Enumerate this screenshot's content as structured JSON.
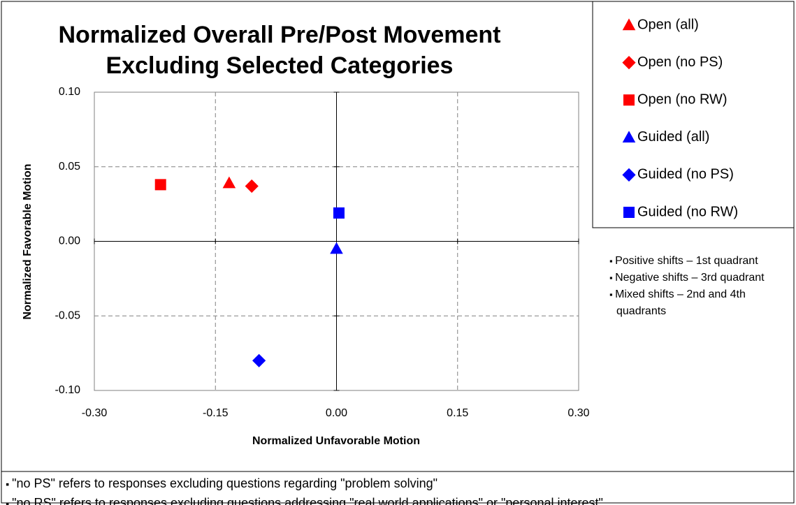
{
  "chart_data": {
    "type": "scatter",
    "title": [
      "Normalized Overall Pre/Post Movement",
      "Excluding Selected Categories"
    ],
    "xlabel": "Normalized Unfavorable Motion",
    "ylabel": "Normalized Favorable Motion",
    "xlim": [
      -0.3,
      0.3
    ],
    "ylim": [
      -0.1,
      0.1
    ],
    "xticks": [
      {
        "value": -0.3,
        "label": "-0.30"
      },
      {
        "value": -0.15,
        "label": "-0.15"
      },
      {
        "value": 0,
        "label": "0.00"
      },
      {
        "value": 0.15,
        "label": "0.15"
      },
      {
        "value": 0.3,
        "label": "0.30"
      }
    ],
    "yticks": [
      {
        "value": 0.1,
        "label": "0.10"
      },
      {
        "value": 0.05,
        "label": "0.05"
      },
      {
        "value": 0,
        "label": "0.00"
      },
      {
        "value": -0.05,
        "label": "-0.05"
      },
      {
        "value": -0.1,
        "label": "-0.10"
      }
    ],
    "grid": true,
    "legend": "upper right",
    "series": [
      {
        "name": "Open (all)",
        "color": "#ff0000",
        "marker": "triangle",
        "x": [
          -0.133
        ],
        "values": [
          0.039
        ]
      },
      {
        "name": "Open (no PS)",
        "color": "#ff0000",
        "marker": "diamond",
        "x": [
          -0.105
        ],
        "values": [
          0.037
        ]
      },
      {
        "name": "Open (no RW)",
        "color": "#ff0000",
        "marker": "square",
        "x": [
          -0.218
        ],
        "values": [
          0.038
        ]
      },
      {
        "name": "Guided (all)",
        "color": "#0000ff",
        "marker": "triangle",
        "x": [
          0.0
        ],
        "values": [
          -0.005
        ]
      },
      {
        "name": "Guided (no PS)",
        "color": "#0000ff",
        "marker": "diamond",
        "x": [
          -0.096
        ],
        "values": [
          -0.08
        ]
      },
      {
        "name": "Guided (no RW)",
        "color": "#0000ff",
        "marker": "square",
        "x": [
          0.003
        ],
        "values": [
          0.019
        ]
      }
    ],
    "side_notes": [
      "Positive shifts – 1st quadrant",
      "Negative shifts – 3rd quadrant",
      "Mixed shifts – 2nd and 4th quadrants"
    ],
    "footnotes": [
      "\"no PS\" refers to responses excluding questions regarding \"problem solving\"",
      "\"no RS\" refers to responses excluding questions addressing \"real world applications\" or \"personal interest\""
    ]
  }
}
